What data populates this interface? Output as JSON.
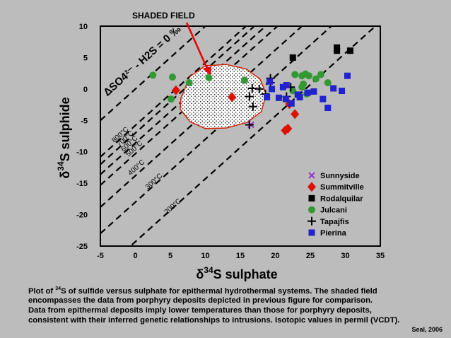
{
  "chart_data": {
    "type": "scatter",
    "xlabel_base": "δ",
    "xlabel_sup": "34",
    "xlabel_rest": "S sulphate",
    "ylabel_base": "δ",
    "ylabel_sup": "34",
    "ylabel_rest": "S sulphide",
    "xlim": [
      -5,
      35
    ],
    "ylim": [
      -25,
      10
    ],
    "x_ticks": [
      -5,
      0,
      5,
      10,
      15,
      20,
      25,
      30,
      35
    ],
    "y_ticks": [
      10,
      5,
      0,
      -5,
      -10,
      -15,
      -20,
      -25
    ],
    "grid": false,
    "legend_position": "bottom-right",
    "annotations": {
      "shaded_field": "SHADED FIELD",
      "fractionation_label": "ΔSO4²⁻ - H2S = 0 ‰"
    },
    "isotherms": [
      {
        "label": "800°C",
        "delta": 5.8
      },
      {
        "label": "700°C",
        "delta": 7.0
      },
      {
        "label": "600°C",
        "delta": 8.6
      },
      {
        "label": "500°C",
        "delta": 10.3
      },
      {
        "label": "400°C",
        "delta": 13.8
      },
      {
        "label": "300°C",
        "delta": 18.0
      },
      {
        "label": "200°C",
        "delta": 24.3
      }
    ],
    "shaded_region": [
      [
        6.5,
        -1.5
      ],
      [
        7.8,
        2.0
      ],
      [
        10.0,
        3.7
      ],
      [
        13.0,
        3.9
      ],
      [
        15.8,
        3.2
      ],
      [
        17.8,
        1.6
      ],
      [
        18.7,
        -0.8
      ],
      [
        18.0,
        -3.6
      ],
      [
        16.0,
        -5.3
      ],
      [
        13.0,
        -6.2
      ],
      [
        10.0,
        -6.3
      ],
      [
        7.8,
        -5.2
      ],
      [
        6.4,
        -3.2
      ]
    ],
    "series": [
      {
        "name": "Sunnyside",
        "marker": "x",
        "color": "#9933cc",
        "points": [
          [
            16.5,
            -5.7
          ]
        ]
      },
      {
        "name": "Summitville",
        "marker": "diamond",
        "color": "#dd1100",
        "points": [
          [
            5.8,
            -0.2
          ],
          [
            13.8,
            -1.3
          ],
          [
            22.0,
            -2.4
          ],
          [
            22.8,
            -4.0
          ],
          [
            21.8,
            -6.3
          ],
          [
            21.4,
            -6.6
          ]
        ]
      },
      {
        "name": "Rodalquilar",
        "marker": "square",
        "color": "#000000",
        "points": [
          [
            22.5,
            5.0
          ],
          [
            28.8,
            6.6
          ],
          [
            28.8,
            6.1
          ],
          [
            30.7,
            6.1
          ]
        ]
      },
      {
        "name": "Julcani",
        "marker": "circle",
        "color": "#339933",
        "points": [
          [
            2.5,
            2.2
          ],
          [
            5.3,
            1.9
          ],
          [
            5.1,
            -1.6
          ],
          [
            7.7,
            1.0
          ],
          [
            10.5,
            1.8
          ],
          [
            15.6,
            1.4
          ],
          [
            22.8,
            2.3
          ],
          [
            23.8,
            2.1
          ],
          [
            24.3,
            2.4
          ],
          [
            24.8,
            2.1
          ],
          [
            25.8,
            1.6
          ],
          [
            26.5,
            2.3
          ],
          [
            27.5,
            1.0
          ],
          [
            23.8,
            0.3
          ],
          [
            22.5,
            -0.3
          ],
          [
            24.0,
            0.8
          ],
          [
            24.5,
            -0.8
          ]
        ]
      },
      {
        "name": "Tapajfis",
        "marker": "plus",
        "color": "#000000",
        "points": [
          [
            19.3,
            1.7
          ],
          [
            19.3,
            1.0
          ],
          [
            16.7,
            0.1
          ],
          [
            17.7,
            0.0
          ],
          [
            18.6,
            -0.8
          ],
          [
            16.3,
            -1.2
          ],
          [
            16.8,
            -2.8
          ],
          [
            16.3,
            -5.7
          ],
          [
            21.6,
            -1.2
          ],
          [
            22.2,
            0.3
          ]
        ]
      },
      {
        "name": "Pierina",
        "marker": "square",
        "color": "#2222cc",
        "points": [
          [
            19.2,
            1.2
          ],
          [
            19.5,
            0.0
          ],
          [
            21.1,
            0.3
          ],
          [
            20.5,
            -1.4
          ],
          [
            21.5,
            -1.6
          ],
          [
            22.3,
            -2.3
          ],
          [
            23.5,
            -1.3
          ],
          [
            24.6,
            -0.6
          ],
          [
            25.5,
            -0.4
          ],
          [
            26.8,
            -1.6
          ],
          [
            27.5,
            -3.0
          ],
          [
            28.3,
            0.1
          ],
          [
            29.5,
            -0.3
          ],
          [
            30.3,
            2.1
          ],
          [
            18.8,
            -1.3
          ],
          [
            23.2,
            -0.9
          ],
          [
            21.6,
            0.6
          ]
        ]
      }
    ]
  },
  "caption": {
    "line1_a": "Plot of ",
    "line1_sup": "34",
    "line1_b": "S of sulfide versus sulphate for epithermal hydrothermal systems. The shaded field",
    "line2": "encompasses the data from porphyry deposits depicted in previous figure for comparison.",
    "line3": "Data from epithermal deposits imply lower temperatures than those for porphyry deposits,",
    "line4": "consistent with their inferred genetic relationships to intrusions. Isotopic values in permil (VCDT)."
  },
  "credit": "Seal, 2006"
}
